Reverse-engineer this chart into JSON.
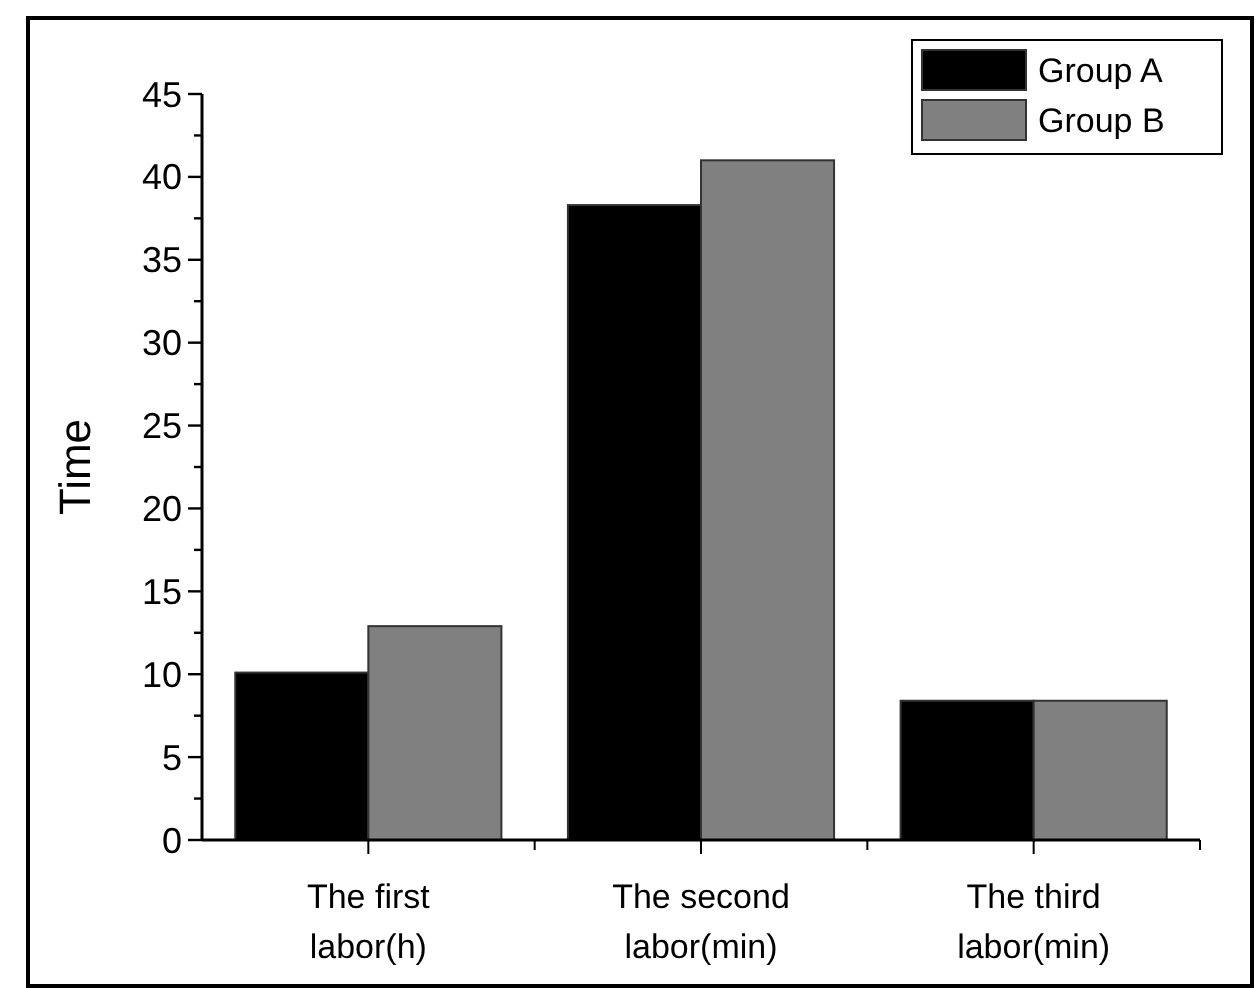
{
  "chart_data": {
    "type": "bar",
    "ylabel": "Time",
    "categories": [
      "The first labor(h)",
      "The second labor(min)",
      "The third labor(min)"
    ],
    "series": [
      {
        "name": "Group A",
        "color": "#000000",
        "values": [
          10.1,
          38.3,
          8.4
        ]
      },
      {
        "name": "Group B",
        "color": "#808080",
        "values": [
          12.9,
          41.0,
          8.4
        ]
      }
    ],
    "ylim": [
      0,
      45
    ],
    "yticks": [
      0,
      {
        "value": 2.5,
        "label": null
      },
      5,
      {
        "value": 7.5,
        "label": null
      },
      10,
      {
        "value": 12.5,
        "label": null
      },
      15,
      {
        "value": 17.5,
        "label": null
      },
      20,
      {
        "value": 22.5,
        "label": null
      },
      25,
      {
        "value": 27.5,
        "label": null
      },
      30,
      {
        "value": 32.5,
        "label": null
      },
      35,
      {
        "value": 37.5,
        "label": null
      },
      40,
      {
        "value": 42.5,
        "label": null
      },
      45
    ],
    "legend": "top right",
    "grid": false
  }
}
